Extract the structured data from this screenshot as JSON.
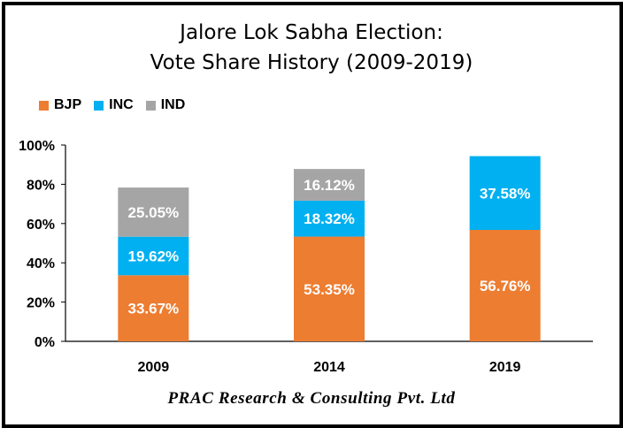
{
  "chart_data": {
    "type": "bar",
    "stacked": true,
    "title_line1": "Jalore Lok Sabha Election:",
    "title_line2": "Vote Share History (2009-2019)",
    "categories": [
      "2009",
      "2014",
      "2019"
    ],
    "series": [
      {
        "name": "BJP",
        "color": "#ED7D31",
        "values": [
          33.67,
          53.35,
          56.76
        ],
        "labels": [
          "33.67%",
          "53.35%",
          "56.76%"
        ]
      },
      {
        "name": "INC",
        "color": "#00B0F0",
        "values": [
          19.62,
          18.32,
          37.58
        ],
        "labels": [
          "19.62%",
          "18.32%",
          "37.58%"
        ]
      },
      {
        "name": "IND",
        "color": "#A5A5A5",
        "values": [
          25.05,
          16.12,
          null
        ],
        "labels": [
          "25.05%",
          "16.12%",
          ""
        ]
      }
    ],
    "ylim": [
      0,
      100
    ],
    "yticks": [
      0,
      20,
      40,
      60,
      80,
      100
    ],
    "ytick_labels": [
      "0%",
      "20%",
      "40%",
      "60%",
      "80%",
      "100%"
    ],
    "grid": false,
    "legend_position": "top-left",
    "xlabel": "",
    "ylabel": ""
  },
  "footer": "PRAC Research & Consulting Pvt. Ltd"
}
